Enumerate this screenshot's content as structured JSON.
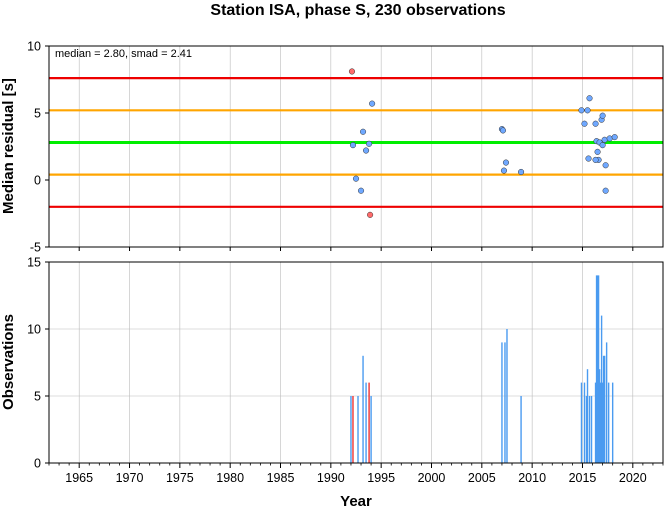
{
  "title": "Station ISA, phase S, 230 observations",
  "colors": {
    "median_line": "#00ee00",
    "smad_line": "#ffa500",
    "outlier_line": "#ee0000",
    "point_normal": "#6fa8ff",
    "point_outlier": "#ff6b6b",
    "bar_normal": "#4a9bf0",
    "bar_outlier": "#ee3333",
    "grid": "#bbbbbb"
  },
  "chart_data": [
    {
      "type": "scatter",
      "ylabel": "Median residual [s]",
      "annotation": "median = 2.80, smad = 2.41",
      "xlim": [
        1962,
        2023
      ],
      "ylim": [
        -5,
        10
      ],
      "yticks": [
        -5,
        0,
        5,
        10
      ],
      "grid": "vertical",
      "reference_lines": [
        {
          "role": "median",
          "value": 2.8
        },
        {
          "role": "plus_one_smad",
          "value": 5.2
        },
        {
          "role": "minus_one_smad",
          "value": 0.4
        },
        {
          "role": "plus_two_smad",
          "value": 7.6
        },
        {
          "role": "minus_two_smad",
          "value": -2.0
        }
      ],
      "points": [
        {
          "x": 1992.1,
          "y": 8.1,
          "outlier": true
        },
        {
          "x": 1992.2,
          "y": 2.6,
          "outlier": false
        },
        {
          "x": 1992.5,
          "y": 0.1,
          "outlier": false
        },
        {
          "x": 1993.0,
          "y": -0.8,
          "outlier": false
        },
        {
          "x": 1993.2,
          "y": 3.6,
          "outlier": false
        },
        {
          "x": 1993.5,
          "y": 2.2,
          "outlier": false
        },
        {
          "x": 1993.8,
          "y": 2.7,
          "outlier": false
        },
        {
          "x": 1993.9,
          "y": -2.6,
          "outlier": true
        },
        {
          "x": 1994.1,
          "y": 5.7,
          "outlier": false
        },
        {
          "x": 2007.0,
          "y": 3.8,
          "outlier": false
        },
        {
          "x": 2007.1,
          "y": 3.7,
          "outlier": false
        },
        {
          "x": 2007.2,
          "y": 0.7,
          "outlier": false
        },
        {
          "x": 2007.4,
          "y": 1.3,
          "outlier": false
        },
        {
          "x": 2008.9,
          "y": 0.6,
          "outlier": false
        },
        {
          "x": 2014.9,
          "y": 5.2,
          "outlier": false
        },
        {
          "x": 2015.2,
          "y": 4.2,
          "outlier": false
        },
        {
          "x": 2015.5,
          "y": 5.2,
          "outlier": false
        },
        {
          "x": 2015.7,
          "y": 6.1,
          "outlier": false
        },
        {
          "x": 2015.6,
          "y": 1.6,
          "outlier": false
        },
        {
          "x": 2016.3,
          "y": 4.2,
          "outlier": false
        },
        {
          "x": 2016.5,
          "y": 2.1,
          "outlier": false
        },
        {
          "x": 2016.6,
          "y": 1.5,
          "outlier": false
        },
        {
          "x": 2016.3,
          "y": 1.5,
          "outlier": false
        },
        {
          "x": 2016.4,
          "y": 2.9,
          "outlier": false
        },
        {
          "x": 2016.7,
          "y": 2.8,
          "outlier": false
        },
        {
          "x": 2016.9,
          "y": 4.5,
          "outlier": false
        },
        {
          "x": 2017.0,
          "y": 4.8,
          "outlier": false
        },
        {
          "x": 2017.0,
          "y": 2.6,
          "outlier": false
        },
        {
          "x": 2017.2,
          "y": 3.0,
          "outlier": false
        },
        {
          "x": 2017.3,
          "y": 1.1,
          "outlier": false
        },
        {
          "x": 2017.3,
          "y": -0.8,
          "outlier": false
        },
        {
          "x": 2017.7,
          "y": 3.1,
          "outlier": false
        },
        {
          "x": 2018.2,
          "y": 3.2,
          "outlier": false
        }
      ]
    },
    {
      "type": "bar",
      "xlabel": "Year",
      "ylabel": "Observations",
      "xlim": [
        1962,
        2023
      ],
      "ylim": [
        0,
        15
      ],
      "yticks": [
        0,
        5,
        10,
        15
      ],
      "xticks": [
        1965,
        1970,
        1975,
        1980,
        1985,
        1990,
        1995,
        2000,
        2005,
        2010,
        2015,
        2020
      ],
      "grid": "both",
      "bars": [
        {
          "x": 1992.0,
          "y": 5,
          "outlier": false
        },
        {
          "x": 1992.2,
          "y": 5,
          "outlier": true
        },
        {
          "x": 1992.7,
          "y": 5,
          "outlier": false
        },
        {
          "x": 1993.2,
          "y": 8,
          "outlier": false
        },
        {
          "x": 1993.5,
          "y": 6,
          "outlier": false
        },
        {
          "x": 1993.8,
          "y": 6,
          "outlier": true
        },
        {
          "x": 1994.0,
          "y": 5,
          "outlier": false
        },
        {
          "x": 2007.0,
          "y": 9,
          "outlier": false
        },
        {
          "x": 2007.3,
          "y": 9,
          "outlier": false
        },
        {
          "x": 2007.5,
          "y": 10,
          "outlier": false
        },
        {
          "x": 2008.9,
          "y": 5,
          "outlier": false
        },
        {
          "x": 2014.9,
          "y": 6,
          "outlier": false
        },
        {
          "x": 2015.2,
          "y": 6,
          "outlier": false
        },
        {
          "x": 2015.4,
          "y": 5,
          "outlier": false
        },
        {
          "x": 2015.5,
          "y": 7,
          "outlier": false
        },
        {
          "x": 2015.7,
          "y": 5,
          "outlier": false
        },
        {
          "x": 2015.9,
          "y": 5,
          "outlier": false
        },
        {
          "x": 2016.3,
          "y": 6,
          "outlier": false
        },
        {
          "x": 2016.4,
          "y": 14,
          "outlier": false
        },
        {
          "x": 2016.5,
          "y": 14,
          "outlier": false
        },
        {
          "x": 2016.6,
          "y": 14,
          "outlier": false
        },
        {
          "x": 2016.7,
          "y": 7,
          "outlier": false
        },
        {
          "x": 2016.8,
          "y": 6,
          "outlier": false
        },
        {
          "x": 2016.9,
          "y": 11,
          "outlier": false
        },
        {
          "x": 2017.0,
          "y": 6,
          "outlier": false
        },
        {
          "x": 2017.1,
          "y": 8,
          "outlier": false
        },
        {
          "x": 2017.2,
          "y": 8,
          "outlier": false
        },
        {
          "x": 2017.4,
          "y": 9,
          "outlier": false
        },
        {
          "x": 2017.6,
          "y": 6,
          "outlier": false
        },
        {
          "x": 2018.0,
          "y": 6,
          "outlier": false
        }
      ]
    }
  ]
}
